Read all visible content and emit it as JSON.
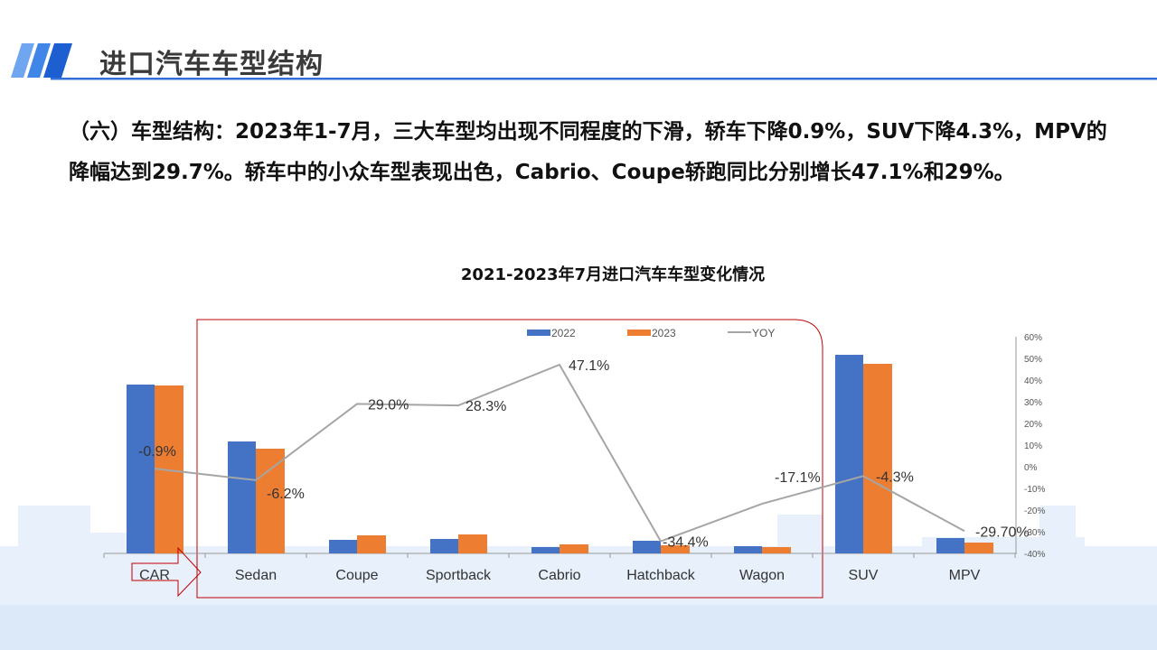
{
  "header": {
    "title": "进口汽车车型结构"
  },
  "paragraph": "（六）车型结构：2023年1-7月，三大车型均出现不同程度的下滑，轿车下降0.9%，SUV下降4.3%，MPV的降幅达到29.7%。轿车中的小众车型表现出色，Cabrio、Coupe轿跑同比分别增长47.1%和29%。",
  "colors": {
    "s2022": "#4472C4",
    "s2023": "#ED7D31",
    "yoy": "#A5A5A5",
    "accent": "#2f6fd6",
    "box": "#C00000"
  },
  "chart_data": {
    "type": "bar",
    "title": "2021-2023年7月进口汽车车型变化情况",
    "categories": [
      "CAR",
      "Sedan",
      "Coupe",
      "Sportback",
      "Cabrio",
      "Hatchback",
      "Wagon",
      "SUV",
      "MPV"
    ],
    "series": [
      {
        "name": "2022",
        "type": "bar",
        "values": [
          187,
          124,
          15,
          16,
          7,
          14,
          8,
          220,
          17
        ]
      },
      {
        "name": "2023",
        "type": "bar",
        "values": [
          186,
          116,
          20,
          21,
          10,
          9,
          7,
          210,
          12
        ]
      },
      {
        "name": "YOY",
        "type": "line",
        "axis": "right",
        "values": [
          -0.9,
          -6.2,
          29.0,
          28.3,
          47.1,
          -34.4,
          -17.1,
          -4.3,
          -29.7
        ]
      }
    ],
    "yoy_labels": [
      "-0.9%",
      "-6.2%",
      "29.0%",
      "28.3%",
      "47.1%",
      "-34.4%",
      "-17.1%",
      "-4.3%",
      "-29.70%"
    ],
    "y2_ticks": [
      "60%",
      "50%",
      "40%",
      "30%",
      "20%",
      "10%",
      "0%",
      "-10%",
      "-20%",
      "-30%",
      "-40%"
    ],
    "y2lim": [
      -40,
      60
    ],
    "legend": [
      "2022",
      "2023",
      "YOY"
    ],
    "legend_position": "top"
  }
}
